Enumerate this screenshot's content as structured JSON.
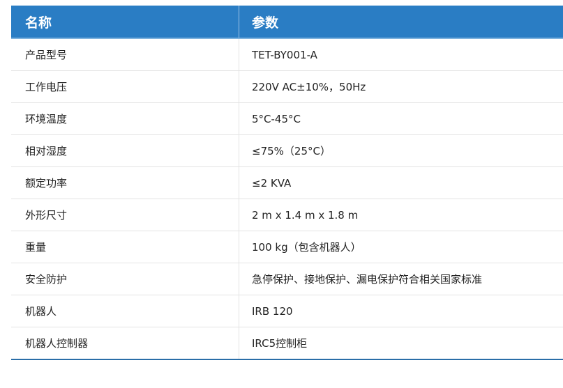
{
  "header": {
    "name": "名称",
    "param": "参数"
  },
  "rows": [
    {
      "name": "产品型号",
      "value": "TET-BY001-A"
    },
    {
      "name": "工作电压",
      "value": "220V AC±10%，50Hz"
    },
    {
      "name": "环境温度",
      "value": "5°C-45°C"
    },
    {
      "name": "相对湿度",
      "value": "≤75%（25°C）"
    },
    {
      "name": "额定功率",
      "value": "≤2 KVA"
    },
    {
      "name": "外形尺寸",
      "value": "2 m x 1.4 m x 1.8 m"
    },
    {
      "name": "重量",
      "value": "100 kg（包含机器人）"
    },
    {
      "name": "安全防护",
      "value": "急停保护、接地保护、漏电保护符合相关国家标准"
    },
    {
      "name": "机器人",
      "value": "IRB 120"
    },
    {
      "name": "机器人控制器",
      "value": "IRC5控制柜"
    }
  ],
  "colors": {
    "header_bg": "#2a7dc4",
    "bottom_border": "#2a6ea8"
  }
}
